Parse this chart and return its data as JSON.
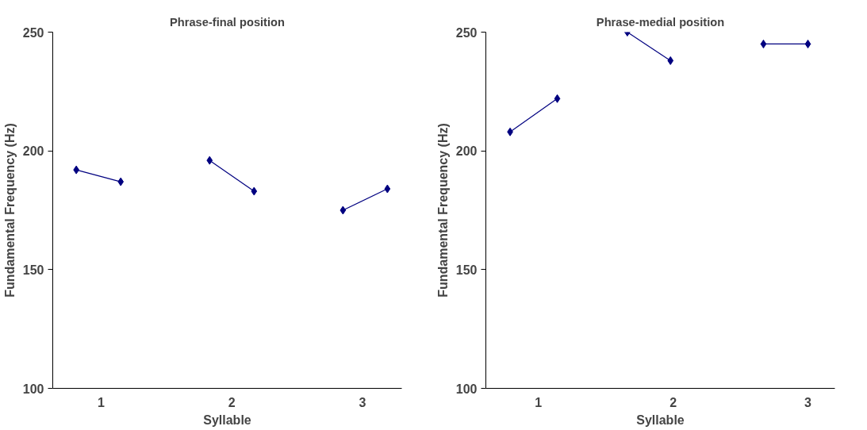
{
  "chart_data": [
    {
      "type": "line",
      "title": "Phrase-final position",
      "xlabel": "Syllable",
      "ylabel": "Fundamental Frequency (Hz)",
      "xlim": [
        0.63,
        3.3
      ],
      "xticks": [
        1,
        2,
        3
      ],
      "ylim": [
        100,
        250
      ],
      "yticks": [
        100,
        150,
        200,
        250
      ],
      "grid": false,
      "marker": "diamond",
      "line_style": "solid",
      "series": [
        {
          "color": "#000080",
          "x": [
            0.81,
            1.15
          ],
          "values": [
            192,
            187
          ]
        },
        {
          "color": "#000080",
          "x": [
            1.83,
            2.17
          ],
          "values": [
            196,
            183
          ]
        },
        {
          "color": "#000080",
          "x": [
            2.85,
            3.19
          ],
          "values": [
            175,
            184
          ]
        }
      ]
    },
    {
      "type": "line",
      "title": "Phrase-medial position",
      "xlabel": "Syllable",
      "ylabel": "Fundamental Frequency (Hz)",
      "xlim": [
        0.61,
        3.2
      ],
      "xticks": [
        1,
        2,
        3
      ],
      "ylim": [
        100,
        250
      ],
      "yticks": [
        100,
        150,
        200,
        250
      ],
      "grid": false,
      "marker": "diamond",
      "line_style": "solid",
      "series": [
        {
          "color": "#000080",
          "x": [
            0.79,
            1.14
          ],
          "values": [
            208,
            222
          ]
        },
        {
          "color": "#000080",
          "x": [
            1.66,
            1.98
          ],
          "values": [
            250,
            238
          ]
        },
        {
          "color": "#000080",
          "x": [
            2.67,
            3.0
          ],
          "values": [
            245,
            245
          ]
        }
      ]
    }
  ]
}
